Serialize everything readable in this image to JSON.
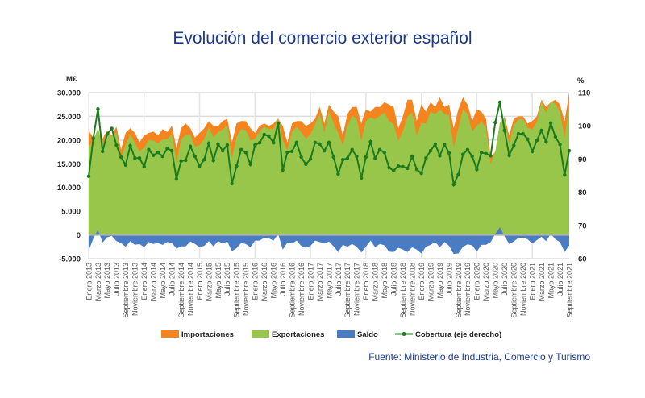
{
  "chart_data": {
    "type": "area",
    "title": "Evolución del comercio exterior español",
    "source": "Fuente: Ministerio de Industria, Comercio y Turismo",
    "y_left": {
      "label": "M€",
      "range": [
        -5000,
        30000
      ],
      "ticks": [
        "-5.000",
        "0",
        "5.000",
        "10.000",
        "15.000",
        "20.000",
        "25.000",
        "30.000"
      ],
      "tick_values": [
        -5000,
        0,
        5000,
        10000,
        15000,
        20000,
        25000,
        30000
      ]
    },
    "y_right": {
      "label": "%",
      "range": [
        60,
        110
      ],
      "ticks": [
        "60",
        "70",
        "80",
        "90",
        "100",
        "110"
      ],
      "tick_values": [
        60,
        70,
        80,
        90,
        100,
        110
      ]
    },
    "x_start": "Enero 2013",
    "x_end": "Septiembre 2021",
    "x_labels": [
      "Enero 2013",
      "Marzo 2013",
      "Mayo 2013",
      "Julio 2013",
      "Septiembre 2013",
      "Noviembre 2013",
      "Enero 2014",
      "Marzo 2014",
      "Mayo 2014",
      "Julio 2014",
      "Septiembre 2014",
      "Noviembre 2014",
      "Enero 2015",
      "Marzo 2015",
      "Mayo 2015",
      "Julio 2015",
      "Septiembre 2015",
      "Noviembre 2015",
      "Enero 2016",
      "Marzo 2016",
      "Mayo 2016",
      "Julio 2016",
      "Septiembre 2016",
      "Noviembre 2016",
      "Enero 2017",
      "Marzo 2017",
      "Mayo 2017",
      "Julio 2017",
      "Septiembre 2017",
      "Noviembre 2017",
      "Enero 2018",
      "Marzo 2018",
      "Mayo 2018",
      "Julio 2018",
      "Septiembre 2018",
      "Noviembre 2018",
      "Enero 2019",
      "Marzo 2019",
      "Mayo 2019",
      "Julio 2019",
      "Septiembre 2019",
      "Noviembre 2019",
      "Enero 2020",
      "Marzo 2020",
      "Mayo 2020",
      "Julio 2020",
      "Septiembre 2020",
      "Noviembre 2020",
      "Enero 2021",
      "Marzo 2021",
      "Mayo 2021",
      "Julio 2021",
      "Septiembre 2021"
    ],
    "grid": true,
    "legend_position": "bottom",
    "series": [
      {
        "name": "Importaciones",
        "color": "#f5841f",
        "axis": "left",
        "type": "area",
        "values": [
          22000,
          20500,
          21500,
          20300,
          22000,
          21000,
          22800,
          18000,
          21500,
          22500,
          21500,
          19500,
          21000,
          21500,
          21800,
          21000,
          22300,
          21700,
          23000,
          18300,
          22500,
          23500,
          22500,
          20500,
          21500,
          22500,
          24000,
          23000,
          23000,
          24000,
          24500,
          19500,
          23500,
          24000,
          24000,
          22500,
          21500,
          23000,
          23500,
          23000,
          23500,
          24500,
          23000,
          19500,
          23500,
          24000,
          24000,
          23000,
          23500,
          24500,
          27000,
          23500,
          27500,
          26000,
          25000,
          21000,
          25500,
          27000,
          27000,
          23500,
          26500,
          26000,
          27000,
          27000,
          28000,
          27500,
          27000,
          22500,
          25000,
          28500,
          28500,
          24000,
          27500,
          26000,
          28000,
          27000,
          29000,
          27000,
          27500,
          22500,
          26500,
          29000,
          27500,
          24000,
          26500,
          26000,
          24500,
          16500,
          17500,
          22000,
          25000,
          21000,
          24500,
          25000,
          25000,
          23500,
          24000,
          25000,
          28500,
          27000,
          28000,
          28500,
          27500,
          24000,
          30000
        ]
      },
      {
        "name": "Exportaciones",
        "color": "#97c64b",
        "axis": "left",
        "type": "area",
        "values": [
          18700,
          19700,
          22600,
          18700,
          21500,
          20800,
          21500,
          16300,
          19000,
          21200,
          19400,
          17600,
          18400,
          20000,
          19900,
          19300,
          20200,
          20200,
          21300,
          15400,
          20100,
          21100,
          21100,
          18600,
          18900,
          20200,
          22700,
          20600,
          21700,
          22200,
          23100,
          16100,
          20700,
          22300,
          22100,
          19900,
          20300,
          21800,
          22900,
          22300,
          22300,
          24700,
          19900,
          17900,
          21700,
          22800,
          21700,
          20300,
          21200,
          23300,
          25500,
          21700,
          26100,
          23600,
          21400,
          18900,
          23000,
          25100,
          24500,
          19800,
          24000,
          24800,
          24400,
          25100,
          25800,
          24000,
          23400,
          19800,
          21900,
          24900,
          25900,
          20900,
          23600,
          23500,
          25900,
          25500,
          26400,
          25500,
          25200,
          18500,
          22600,
          26500,
          25500,
          21800,
          23000,
          23900,
          22400,
          15000,
          17700,
          23600,
          24700,
          19100,
          23100,
          24400,
          24400,
          22600,
          22200,
          23900,
          28100,
          25700,
          28200,
          27600,
          26000,
          20400,
          27800
        ]
      },
      {
        "name": "Saldo",
        "color": "#4a7cc3",
        "axis": "left",
        "type": "area",
        "values": [
          -3300,
          -800,
          1100,
          -1600,
          -500,
          -200,
          -1300,
          -1700,
          -2500,
          -1300,
          -2100,
          -1900,
          -2600,
          -1500,
          -1900,
          -1700,
          -2100,
          -1500,
          -1700,
          -2900,
          -2400,
          -2400,
          -1400,
          -1900,
          -2600,
          -2300,
          -1300,
          -2400,
          -1300,
          -1800,
          -1400,
          -3400,
          -2800,
          -1700,
          -1900,
          -2600,
          -1200,
          -1200,
          -600,
          -700,
          -1200,
          200,
          -3100,
          -1600,
          -1800,
          -1200,
          -2300,
          -2700,
          -2300,
          -1200,
          -1500,
          -1800,
          -1400,
          -2400,
          -3600,
          -2100,
          -2500,
          -1900,
          -2500,
          -3700,
          -2500,
          -1200,
          -2600,
          -1900,
          -2200,
          -3500,
          -3600,
          -2700,
          -3100,
          -3600,
          -2600,
          -3100,
          -3900,
          -2500,
          -2100,
          -1500,
          -2600,
          -1500,
          -2300,
          -4000,
          -3900,
          -2500,
          -2000,
          -2200,
          -3500,
          -2100,
          -2100,
          -1500,
          200,
          1600,
          -300,
          -1900,
          -1400,
          -600,
          -600,
          -900,
          -1800,
          -1100,
          -400,
          -1300,
          200,
          -900,
          -1500,
          -3600,
          -2200
        ]
      },
      {
        "name": "Cobertura (eje derecho)",
        "color": "#1e7a1e",
        "axis": "right",
        "type": "line",
        "values": [
          84.8,
          96.2,
          105.1,
          92.3,
          97.5,
          99.2,
          94.2,
          90.6,
          88.2,
          94.0,
          90.3,
          90.3,
          87.7,
          92.8,
          91.1,
          92.0,
          90.8,
          93.2,
          92.5,
          84.0,
          89.4,
          89.6,
          93.8,
          90.8,
          87.9,
          89.8,
          94.7,
          89.6,
          94.5,
          92.5,
          94.2,
          82.6,
          87.9,
          92.8,
          92.0,
          88.4,
          94.2,
          94.9,
          97.4,
          96.9,
          94.9,
          100.8,
          86.7,
          92.0,
          92.3,
          95.0,
          90.6,
          88.4,
          90.0,
          95.0,
          94.5,
          92.5,
          95.0,
          90.6,
          85.5,
          89.8,
          90.2,
          92.8,
          90.8,
          84.3,
          90.6,
          95.2,
          90.2,
          92.8,
          92.0,
          87.4,
          86.5,
          87.9,
          87.7,
          87.2,
          90.8,
          86.9,
          85.7,
          90.3,
          92.5,
          94.5,
          91.0,
          94.4,
          91.8,
          82.3,
          85.3,
          91.4,
          92.8,
          90.8,
          86.9,
          92.0,
          91.6,
          91.0,
          101.0,
          107.1,
          98.6,
          91.1,
          94.1,
          97.6,
          97.6,
          96.0,
          92.3,
          95.6,
          98.6,
          95.2,
          100.8,
          96.7,
          94.4,
          85.2,
          92.5
        ]
      }
    ]
  }
}
